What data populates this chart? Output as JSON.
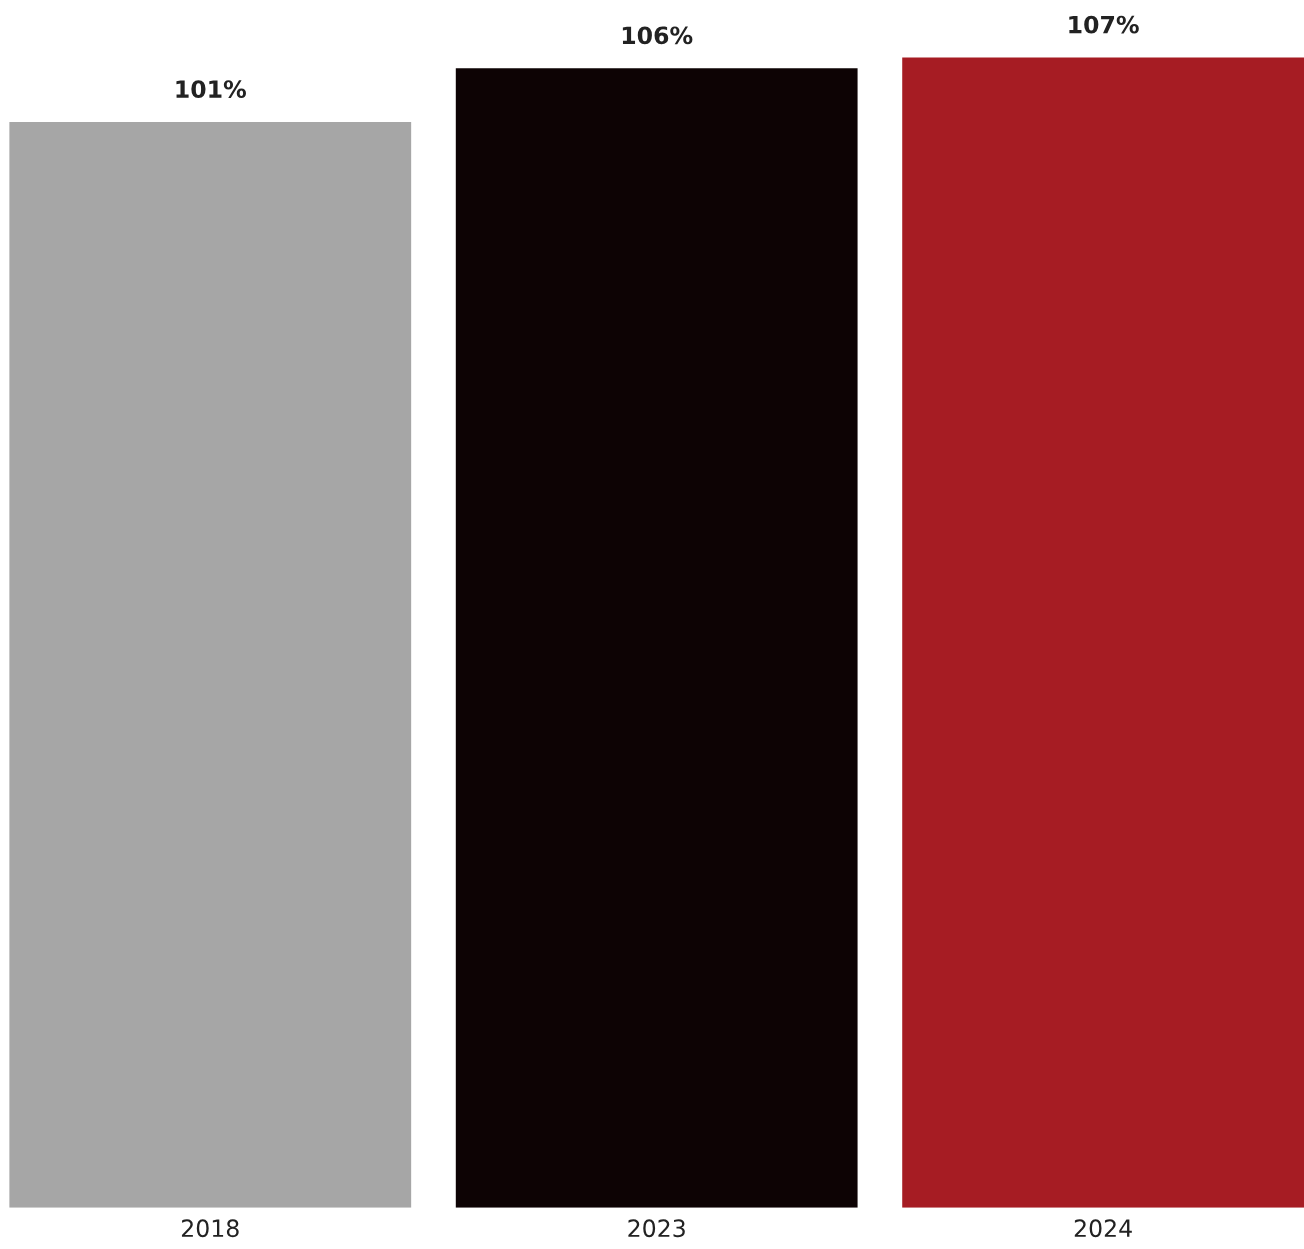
{
  "chart_data": {
    "type": "bar",
    "categories": [
      "2018",
      "2023",
      "2024"
    ],
    "values": [
      101,
      106,
      107
    ],
    "colors": [
      "#a6a6a6",
      "#0d0304",
      "#a61c23"
    ],
    "value_labels": [
      "101%",
      "106%",
      "107%"
    ],
    "tick_labels": "x",
    "grid": false,
    "legend": false
  }
}
